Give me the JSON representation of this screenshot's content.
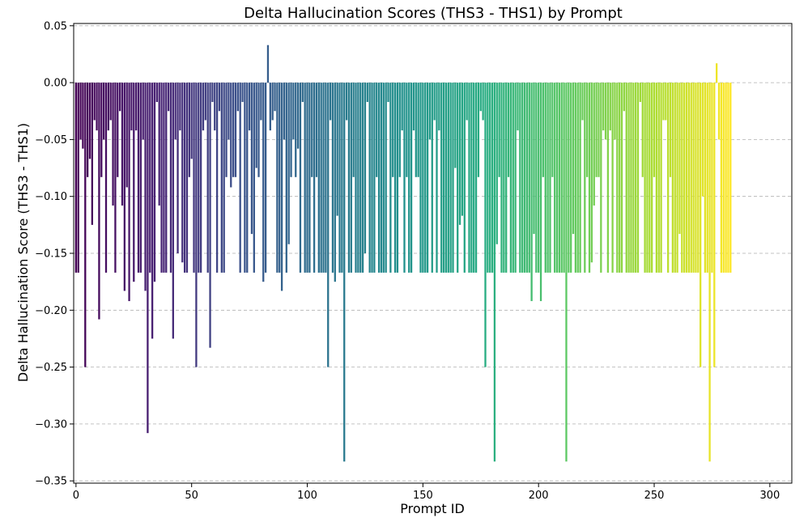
{
  "chart_data": {
    "type": "bar",
    "title": "Delta Hallucination Scores (THS3 - THS1) by Prompt",
    "xlabel": "Prompt ID",
    "ylabel": "Delta Hallucination Score (THS3 - THS1)",
    "xlim": [
      -1,
      309.5
    ],
    "ylim": [
      -0.352,
      0.052
    ],
    "xticks": [
      0,
      50,
      100,
      150,
      200,
      250,
      300
    ],
    "yticks": [
      0.05,
      0.0,
      -0.05,
      -0.1,
      -0.15,
      -0.2,
      -0.25,
      -0.3,
      -0.35
    ],
    "xtick_labels": [
      "0",
      "50",
      "100",
      "150",
      "200",
      "250",
      "300"
    ],
    "ytick_labels": [
      "0.05",
      "0.00",
      "−0.05",
      "−0.10",
      "−0.15",
      "−0.20",
      "−0.25",
      "−0.30",
      "−0.35"
    ],
    "grid": "y-dashed",
    "colormap": "viridis",
    "x_start": 0,
    "values": [
      -0.167,
      -0.167,
      -0.05,
      -0.058,
      -0.25,
      -0.083,
      -0.067,
      -0.125,
      -0.033,
      -0.042,
      -0.208,
      -0.083,
      -0.05,
      -0.167,
      -0.042,
      -0.033,
      -0.108,
      -0.167,
      -0.083,
      -0.025,
      -0.108,
      -0.183,
      -0.092,
      -0.192,
      -0.042,
      -0.175,
      -0.042,
      -0.167,
      -0.167,
      -0.05,
      -0.183,
      -0.308,
      -0.167,
      -0.225,
      -0.175,
      -0.017,
      -0.108,
      -0.167,
      -0.167,
      -0.167,
      -0.025,
      -0.167,
      -0.225,
      -0.05,
      -0.15,
      -0.042,
      -0.158,
      -0.167,
      -0.167,
      -0.083,
      -0.067,
      -0.167,
      -0.25,
      -0.167,
      -0.167,
      -0.042,
      -0.033,
      -0.167,
      -0.233,
      -0.017,
      -0.042,
      -0.167,
      -0.025,
      -0.167,
      -0.167,
      -0.083,
      -0.05,
      -0.092,
      -0.083,
      -0.083,
      -0.025,
      -0.167,
      -0.017,
      -0.167,
      -0.167,
      -0.042,
      -0.133,
      -0.167,
      -0.075,
      -0.083,
      -0.033,
      -0.175,
      -0.167,
      0.033,
      -0.042,
      -0.033,
      -0.025,
      -0.167,
      -0.167,
      -0.183,
      -0.05,
      -0.167,
      -0.142,
      -0.083,
      -0.05,
      -0.083,
      -0.058,
      -0.167,
      -0.017,
      -0.167,
      -0.167,
      -0.167,
      -0.083,
      -0.167,
      -0.083,
      -0.167,
      -0.167,
      -0.167,
      -0.167,
      -0.25,
      -0.033,
      -0.167,
      -0.175,
      -0.117,
      -0.167,
      -0.167,
      -0.333,
      -0.033,
      -0.167,
      -0.167,
      -0.083,
      -0.167,
      -0.167,
      -0.167,
      -0.167,
      -0.15,
      -0.017,
      -0.167,
      -0.167,
      -0.167,
      -0.083,
      -0.167,
      -0.167,
      -0.167,
      -0.167,
      -0.017,
      -0.167,
      -0.083,
      -0.167,
      -0.167,
      -0.083,
      -0.042,
      -0.167,
      -0.083,
      -0.167,
      -0.167,
      -0.042,
      -0.083,
      -0.083,
      -0.167,
      -0.167,
      -0.167,
      -0.167,
      -0.05,
      -0.167,
      -0.033,
      -0.167,
      -0.042,
      -0.167,
      -0.167,
      -0.167,
      -0.167,
      -0.167,
      -0.167,
      -0.075,
      -0.167,
      -0.125,
      -0.117,
      -0.167,
      -0.033,
      -0.167,
      -0.167,
      -0.167,
      -0.167,
      -0.083,
      -0.025,
      -0.033,
      -0.25,
      -0.167,
      -0.167,
      -0.167,
      -0.333,
      -0.142,
      -0.083,
      -0.167,
      -0.167,
      -0.167,
      -0.083,
      -0.167,
      -0.167,
      -0.167,
      -0.042,
      -0.167,
      -0.167,
      -0.167,
      -0.167,
      -0.167,
      -0.192,
      -0.133,
      -0.167,
      -0.167,
      -0.192,
      -0.083,
      -0.167,
      -0.167,
      -0.167,
      -0.083,
      -0.167,
      -0.167,
      -0.167,
      -0.167,
      -0.167,
      -0.333,
      -0.167,
      -0.167,
      -0.133,
      -0.167,
      -0.167,
      -0.167,
      -0.033,
      -0.167,
      -0.083,
      -0.167,
      -0.158,
      -0.108,
      -0.083,
      -0.083,
      -0.167,
      -0.042,
      -0.05,
      -0.167,
      -0.042,
      -0.167,
      -0.05,
      -0.167,
      -0.167,
      -0.167,
      -0.025,
      -0.167,
      -0.167,
      -0.167,
      -0.167,
      -0.167,
      -0.167,
      -0.017,
      -0.083,
      -0.167,
      -0.167,
      -0.167,
      -0.167,
      -0.083,
      -0.167,
      -0.167,
      -0.167,
      -0.033,
      -0.033,
      -0.167,
      -0.083,
      -0.167,
      -0.167,
      -0.167,
      -0.133,
      -0.167,
      -0.167,
      -0.167,
      -0.167,
      -0.167,
      -0.167,
      -0.167,
      -0.167,
      -0.25,
      -0.1,
      -0.167,
      -0.167,
      -0.333,
      -0.167,
      -0.25,
      0.017,
      -0.05,
      -0.167,
      -0.167,
      -0.167,
      -0.167,
      -0.167
    ]
  }
}
